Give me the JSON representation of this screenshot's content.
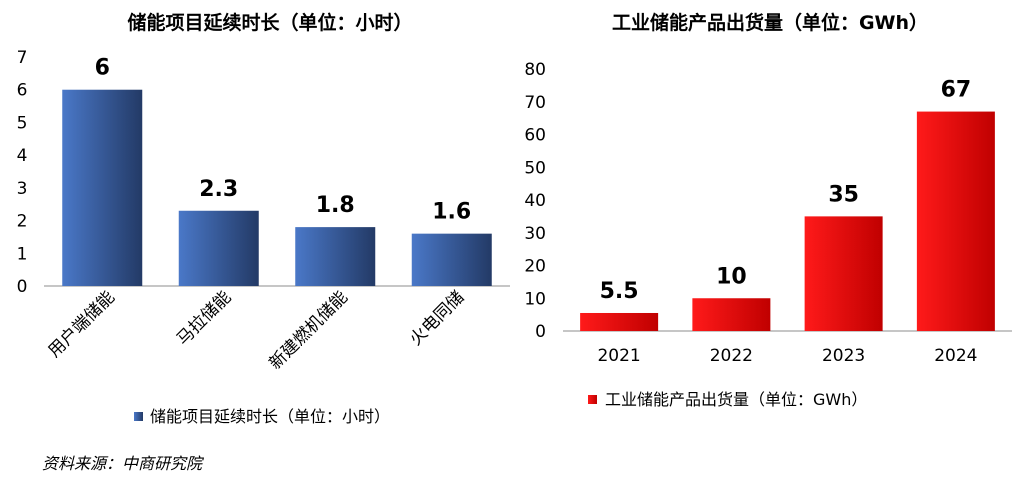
{
  "source": "资料来源：中商研究院",
  "chart_data": [
    {
      "type": "bar",
      "title": "储能项目延续时长（单位：小时）",
      "categories": [
        "用户端储能",
        "马拉储能",
        "新建燃机储能",
        "火电同储"
      ],
      "values": [
        6,
        2.3,
        1.8,
        1.6
      ],
      "value_labels": [
        "6",
        "2.3",
        "1.8",
        "1.6"
      ],
      "yticks": [
        "0",
        "1",
        "2",
        "3",
        "4",
        "5",
        "6",
        "7"
      ],
      "ylim": [
        0,
        7
      ],
      "legend": "储能项目延续时长（单位：小时）",
      "legend_position": "bottom",
      "color": "#3B64B2",
      "grid": false
    },
    {
      "type": "bar",
      "title": "工业储能产品出货量（单位：GWh）",
      "categories": [
        "2021",
        "2022",
        "2023",
        "2024"
      ],
      "values": [
        5.5,
        10,
        35,
        67
      ],
      "value_labels": [
        "5.5",
        "10",
        "35",
        "67"
      ],
      "yticks": [
        "0",
        "10",
        "20",
        "30",
        "40",
        "50",
        "60",
        "70",
        "80"
      ],
      "ylim": [
        0,
        80
      ],
      "legend": "工业储能产品出货量（单位：GWh）",
      "legend_position": "bottom",
      "color": "#E30A0A",
      "grid": false
    }
  ]
}
